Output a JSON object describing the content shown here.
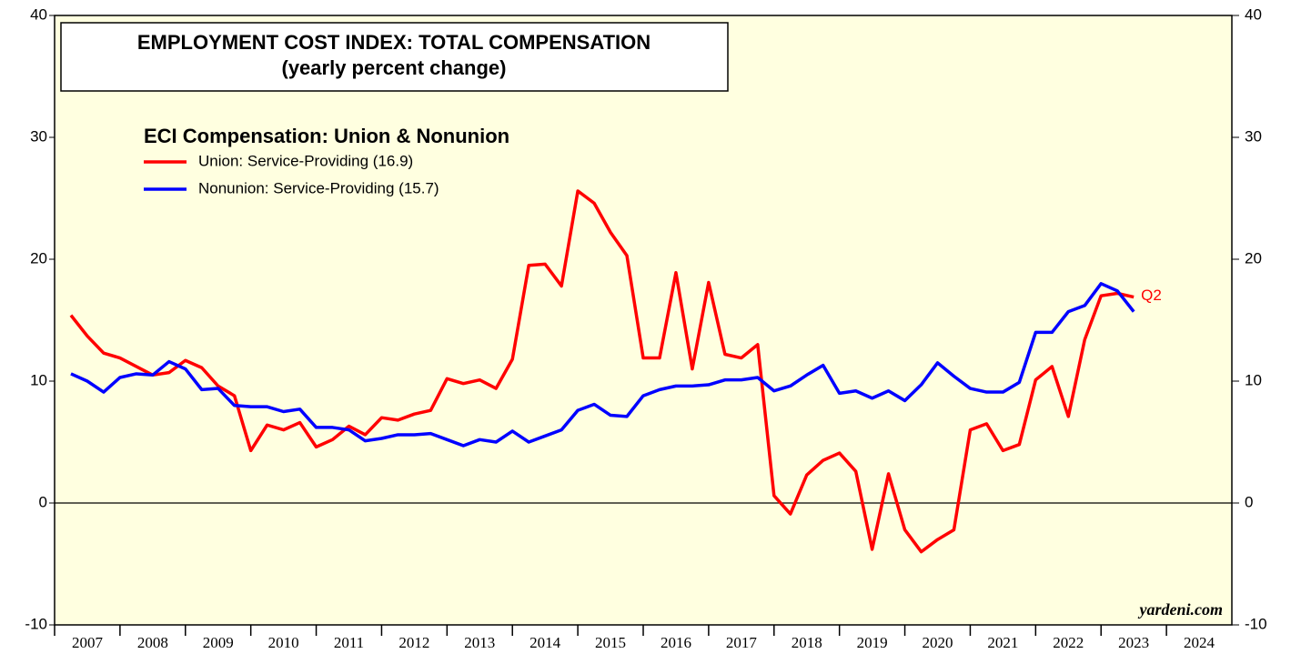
{
  "chart_data": {
    "type": "line",
    "title": "EMPLOYMENT COST INDEX: TOTAL COMPENSATION",
    "subtitle": "(yearly percent change)",
    "legend_title": "ECI Compensation: Union & Nonunion",
    "end_label": "Q2",
    "source": "yardeni.com",
    "x": [
      2007.25,
      2007.5,
      2007.75,
      2008,
      2008.25,
      2008.5,
      2008.75,
      2009,
      2009.25,
      2009.5,
      2009.75,
      2010,
      2010.25,
      2010.5,
      2010.75,
      2011,
      2011.25,
      2011.5,
      2011.75,
      2012,
      2012.25,
      2012.5,
      2012.75,
      2013,
      2013.25,
      2013.5,
      2013.75,
      2014,
      2014.25,
      2014.5,
      2014.75,
      2015,
      2015.25,
      2015.5,
      2015.75,
      2016,
      2016.25,
      2016.5,
      2016.75,
      2017,
      2017.25,
      2017.5,
      2017.75,
      2018,
      2018.25,
      2018.5,
      2018.75,
      2019,
      2019.25,
      2019.5,
      2019.75,
      2020,
      2020.25,
      2020.5,
      2020.75,
      2021,
      2021.25,
      2021.5,
      2021.75,
      2022,
      2022.25,
      2022.5,
      2022.75,
      2023,
      2023.25,
      2023.5
    ],
    "series": [
      {
        "name": "Union: Service-Providing (16.9)",
        "color": "#ff0000",
        "values": [
          15.4,
          13.7,
          12.3,
          11.9,
          11.2,
          10.5,
          10.7,
          11.7,
          11.1,
          9.6,
          8.8,
          4.3,
          6.4,
          6.0,
          6.6,
          4.6,
          5.2,
          6.3,
          5.6,
          7.0,
          6.8,
          7.3,
          7.6,
          10.2,
          9.8,
          10.1,
          9.4,
          11.8,
          19.5,
          19.6,
          17.8,
          25.6,
          24.6,
          22.2,
          20.3,
          11.9,
          11.9,
          18.9,
          11.0,
          18.1,
          12.2,
          11.9,
          13.0,
          0.6,
          -0.9,
          2.3,
          3.5,
          4.1,
          2.6,
          -3.8,
          2.4,
          -2.2,
          -4.0,
          -3.0,
          -2.2,
          6.0,
          6.5,
          4.3,
          4.8,
          10.1,
          11.2,
          7.1,
          13.4,
          17.0,
          17.2,
          16.9
        ]
      },
      {
        "name": "Nonunion: Service-Providing (15.7)",
        "color": "#0000ff",
        "values": [
          10.6,
          10.0,
          9.1,
          10.3,
          10.6,
          10.5,
          11.6,
          11.0,
          9.3,
          9.4,
          8.0,
          7.9,
          7.9,
          7.5,
          7.7,
          6.2,
          6.2,
          6.0,
          5.1,
          5.3,
          5.6,
          5.6,
          5.7,
          5.2,
          4.7,
          5.2,
          5.0,
          5.9,
          5.0,
          5.5,
          6.0,
          7.6,
          8.1,
          7.2,
          7.1,
          8.8,
          9.3,
          9.6,
          9.6,
          9.7,
          10.1,
          10.1,
          10.3,
          9.2,
          9.6,
          10.5,
          11.3,
          9.0,
          9.2,
          8.6,
          9.2,
          8.4,
          9.7,
          11.5,
          10.4,
          9.4,
          9.1,
          9.1,
          9.9,
          14.0,
          14.0,
          15.7,
          16.2,
          18.0,
          17.4,
          15.7
        ]
      }
    ],
    "xlim": [
      2007,
      2025
    ],
    "xticks": [
      2007,
      2008,
      2009,
      2010,
      2011,
      2012,
      2013,
      2014,
      2015,
      2016,
      2017,
      2018,
      2019,
      2020,
      2021,
      2022,
      2023,
      2024
    ],
    "ylim": [
      -10,
      40
    ],
    "yticks": [
      -10,
      0,
      10,
      20,
      30,
      40
    ],
    "y2lim": [
      -10,
      40
    ],
    "y2ticks": [
      -10,
      0,
      10,
      20,
      30,
      40
    ],
    "background": "#ffffe0"
  }
}
